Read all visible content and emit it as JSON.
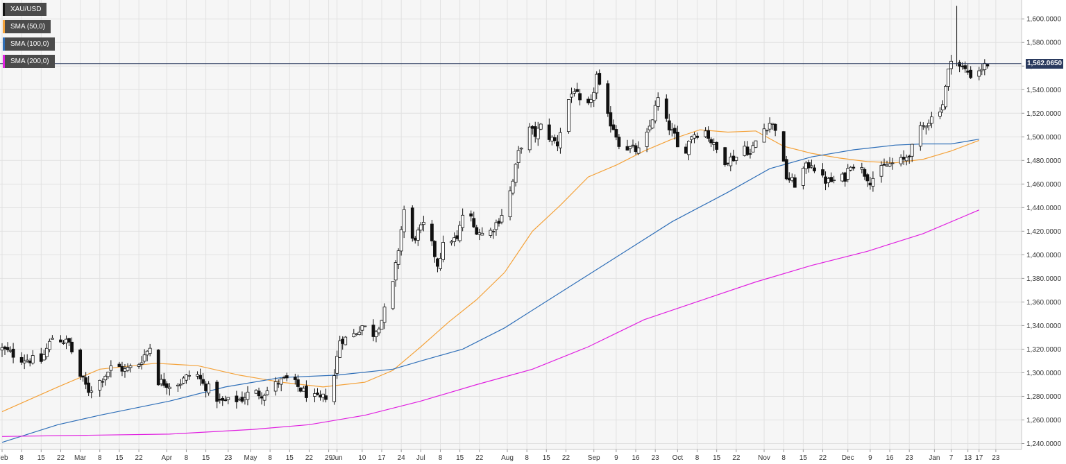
{
  "legend": [
    {
      "label": "XAU/USD",
      "color": "#111111"
    },
    {
      "label": "SMA (50,0)",
      "color": "#f4a23a"
    },
    {
      "label": "SMA (100,0)",
      "color": "#2f6fb8"
    },
    {
      "label": "SMA (200,0)",
      "color": "#e020e0"
    }
  ],
  "current_price": {
    "label": "1,562.0650",
    "value": 1562.065,
    "color": "#2a3a5e"
  },
  "chart_data": {
    "type": "candlestick",
    "symbol": "XAU/USD",
    "ylim": [
      1235,
      1616
    ],
    "grid": true,
    "yticks": [
      1240,
      1260,
      1280,
      1300,
      1320,
      1340,
      1360,
      1380,
      1400,
      1420,
      1440,
      1460,
      1480,
      1500,
      1520,
      1540,
      1560,
      1580,
      1600
    ],
    "ytick_labels": [
      "1,240.0000",
      "1,260.0000",
      "1,280.0000",
      "1,300.0000",
      "1,320.0000",
      "1,340.0000",
      "1,360.0000",
      "1,380.0000",
      "1,400.0000",
      "1,420.0000",
      "1,440.0000",
      "1,460.0000",
      "1,480.0000",
      "1,500.0000",
      "1,520.0000",
      "1,540.0000",
      "1,560.0000",
      "1,580.0000",
      "1,600.0000"
    ],
    "xticks": [
      {
        "label": "Feb",
        "day": 0
      },
      {
        "label": "8",
        "day": 7
      },
      {
        "label": "15",
        "day": 14
      },
      {
        "label": "22",
        "day": 21
      },
      {
        "label": "Mar",
        "day": 28
      },
      {
        "label": "8",
        "day": 35
      },
      {
        "label": "15",
        "day": 42
      },
      {
        "label": "22",
        "day": 49
      },
      {
        "label": "Apr",
        "day": 59
      },
      {
        "label": "8",
        "day": 66
      },
      {
        "label": "15",
        "day": 73
      },
      {
        "label": "23",
        "day": 81
      },
      {
        "label": "May",
        "day": 89
      },
      {
        "label": "8",
        "day": 96
      },
      {
        "label": "15",
        "day": 103
      },
      {
        "label": "22",
        "day": 110
      },
      {
        "label": "29",
        "day": 117
      },
      {
        "label": "Jun",
        "day": 120
      },
      {
        "label": "10",
        "day": 129
      },
      {
        "label": "17",
        "day": 136
      },
      {
        "label": "24",
        "day": 143
      },
      {
        "label": "Jul",
        "day": 150
      },
      {
        "label": "8",
        "day": 157
      },
      {
        "label": "15",
        "day": 164
      },
      {
        "label": "22",
        "day": 171
      },
      {
        "label": "Aug",
        "day": 181
      },
      {
        "label": "8",
        "day": 188
      },
      {
        "label": "15",
        "day": 195
      },
      {
        "label": "22",
        "day": 202
      },
      {
        "label": "Sep",
        "day": 212
      },
      {
        "label": "9",
        "day": 220
      },
      {
        "label": "16",
        "day": 227
      },
      {
        "label": "23",
        "day": 234
      },
      {
        "label": "Oct",
        "day": 242
      },
      {
        "label": "8",
        "day": 249
      },
      {
        "label": "15",
        "day": 256
      },
      {
        "label": "22",
        "day": 263
      },
      {
        "label": "Nov",
        "day": 273
      },
      {
        "label": "8",
        "day": 280
      },
      {
        "label": "15",
        "day": 287
      },
      {
        "label": "22",
        "day": 294
      },
      {
        "label": "Dec",
        "day": 303
      },
      {
        "label": "9",
        "day": 311
      },
      {
        "label": "16",
        "day": 318
      },
      {
        "label": "23",
        "day": 325
      },
      {
        "label": "Jan",
        "day": 334
      },
      {
        "label": "7",
        "day": 340
      },
      {
        "label": "13",
        "day": 346
      },
      {
        "label": "17",
        "day": 350
      },
      {
        "label": "23",
        "day": 356
      }
    ],
    "close_anchors": [
      [
        0,
        1320
      ],
      [
        7,
        1312
      ],
      [
        14,
        1310
      ],
      [
        18,
        1330
      ],
      [
        21,
        1328
      ],
      [
        24,
        1325
      ],
      [
        28,
        1297
      ],
      [
        31,
        1285
      ],
      [
        35,
        1293
      ],
      [
        40,
        1307
      ],
      [
        44,
        1302
      ],
      [
        49,
        1308
      ],
      [
        53,
        1322
      ],
      [
        56,
        1293
      ],
      [
        60,
        1290
      ],
      [
        64,
        1292
      ],
      [
        69,
        1302
      ],
      [
        72,
        1290
      ],
      [
        75,
        1285
      ],
      [
        78,
        1275
      ],
      [
        82,
        1276
      ],
      [
        86,
        1278
      ],
      [
        89,
        1284
      ],
      [
        93,
        1282
      ],
      [
        96,
        1286
      ],
      [
        99,
        1292
      ],
      [
        103,
        1295
      ],
      [
        106,
        1288
      ],
      [
        110,
        1280
      ],
      [
        114,
        1277
      ],
      [
        117,
        1282
      ],
      [
        119,
        1298
      ],
      [
        121,
        1328
      ],
      [
        125,
        1330
      ],
      [
        129,
        1340
      ],
      [
        133,
        1333
      ],
      [
        136,
        1345
      ],
      [
        140,
        1375
      ],
      [
        142,
        1405
      ],
      [
        144,
        1438
      ],
      [
        147,
        1412
      ],
      [
        151,
        1425
      ],
      [
        154,
        1408
      ],
      [
        156,
        1392
      ],
      [
        159,
        1415
      ],
      [
        163,
        1412
      ],
      [
        166,
        1445
      ],
      [
        169,
        1423
      ],
      [
        172,
        1418
      ],
      [
        175,
        1420
      ],
      [
        178,
        1430
      ],
      [
        181,
        1445
      ],
      [
        183,
        1462
      ],
      [
        185,
        1486
      ],
      [
        188,
        1508
      ],
      [
        191,
        1502
      ],
      [
        194,
        1512
      ],
      [
        196,
        1500
      ],
      [
        199,
        1494
      ],
      [
        202,
        1527
      ],
      [
        205,
        1541
      ],
      [
        208,
        1521
      ],
      [
        211,
        1528
      ],
      [
        213,
        1552
      ],
      [
        216,
        1520
      ],
      [
        219,
        1508
      ],
      [
        221,
        1495
      ],
      [
        224,
        1491
      ],
      [
        228,
        1488
      ],
      [
        231,
        1501
      ],
      [
        235,
        1532
      ],
      [
        238,
        1512
      ],
      [
        241,
        1500
      ],
      [
        243,
        1480
      ],
      [
        245,
        1490
      ],
      [
        247,
        1502
      ],
      [
        252,
        1505
      ],
      [
        255,
        1492
      ],
      [
        259,
        1480
      ],
      [
        263,
        1483
      ],
      [
        266,
        1492
      ],
      [
        268,
        1485
      ],
      [
        271,
        1502
      ],
      [
        275,
        1512
      ],
      [
        277,
        1508
      ],
      [
        279,
        1486
      ],
      [
        281,
        1466
      ],
      [
        284,
        1460
      ],
      [
        287,
        1472
      ],
      [
        290,
        1478
      ],
      [
        293,
        1465
      ],
      [
        296,
        1462
      ],
      [
        299,
        1463
      ],
      [
        302,
        1466
      ],
      [
        304,
        1478
      ],
      [
        308,
        1472
      ],
      [
        311,
        1463
      ],
      [
        314,
        1470
      ],
      [
        317,
        1476
      ],
      [
        320,
        1478
      ],
      [
        323,
        1480
      ],
      [
        326,
        1490
      ],
      [
        328,
        1503
      ],
      [
        331,
        1512
      ],
      [
        334,
        1518
      ],
      [
        337,
        1528
      ],
      [
        339,
        1555
      ],
      [
        340,
        1568
      ],
      [
        342,
        1562
      ],
      [
        344,
        1558
      ],
      [
        346,
        1555
      ],
      [
        348,
        1550
      ],
      [
        350,
        1557
      ],
      [
        352,
        1560
      ],
      [
        353,
        1562
      ]
    ],
    "x_range_days": [
      0,
      361
    ],
    "sma_series": [
      {
        "label": "SMA (50,0)",
        "color": "#f4a23a",
        "points": [
          [
            0,
            1267
          ],
          [
            20,
            1288
          ],
          [
            35,
            1303
          ],
          [
            55,
            1308
          ],
          [
            70,
            1306
          ],
          [
            85,
            1298
          ],
          [
            100,
            1292
          ],
          [
            115,
            1288
          ],
          [
            130,
            1292
          ],
          [
            140,
            1302
          ],
          [
            150,
            1322
          ],
          [
            160,
            1343
          ],
          [
            170,
            1362
          ],
          [
            180,
            1385
          ],
          [
            190,
            1420
          ],
          [
            200,
            1442
          ],
          [
            210,
            1466
          ],
          [
            220,
            1476
          ],
          [
            230,
            1488
          ],
          [
            240,
            1498
          ],
          [
            250,
            1506
          ],
          [
            260,
            1504
          ],
          [
            270,
            1505
          ],
          [
            280,
            1492
          ],
          [
            290,
            1486
          ],
          [
            300,
            1482
          ],
          [
            310,
            1479
          ],
          [
            320,
            1478
          ],
          [
            330,
            1481
          ],
          [
            340,
            1488
          ],
          [
            350,
            1497
          ]
        ]
      },
      {
        "label": "SMA (100,0)",
        "color": "#2f6fb8",
        "points": [
          [
            0,
            1241
          ],
          [
            20,
            1256
          ],
          [
            35,
            1264
          ],
          [
            60,
            1276
          ],
          [
            80,
            1288
          ],
          [
            100,
            1296
          ],
          [
            120,
            1298
          ],
          [
            140,
            1303
          ],
          [
            150,
            1310
          ],
          [
            165,
            1320
          ],
          [
            180,
            1338
          ],
          [
            200,
            1368
          ],
          [
            220,
            1398
          ],
          [
            240,
            1428
          ],
          [
            260,
            1453
          ],
          [
            275,
            1473
          ],
          [
            290,
            1483
          ],
          [
            305,
            1489
          ],
          [
            320,
            1493
          ],
          [
            330,
            1494
          ],
          [
            340,
            1494
          ],
          [
            350,
            1498
          ]
        ]
      },
      {
        "label": "SMA (200,0)",
        "color": "#e020e0",
        "points": [
          [
            0,
            1246
          ],
          [
            30,
            1247
          ],
          [
            60,
            1248
          ],
          [
            90,
            1252
          ],
          [
            110,
            1256
          ],
          [
            130,
            1264
          ],
          [
            150,
            1276
          ],
          [
            170,
            1290
          ],
          [
            190,
            1303
          ],
          [
            210,
            1322
          ],
          [
            230,
            1345
          ],
          [
            250,
            1361
          ],
          [
            270,
            1377
          ],
          [
            290,
            1391
          ],
          [
            310,
            1403
          ],
          [
            330,
            1418
          ],
          [
            350,
            1438
          ]
        ]
      }
    ]
  }
}
